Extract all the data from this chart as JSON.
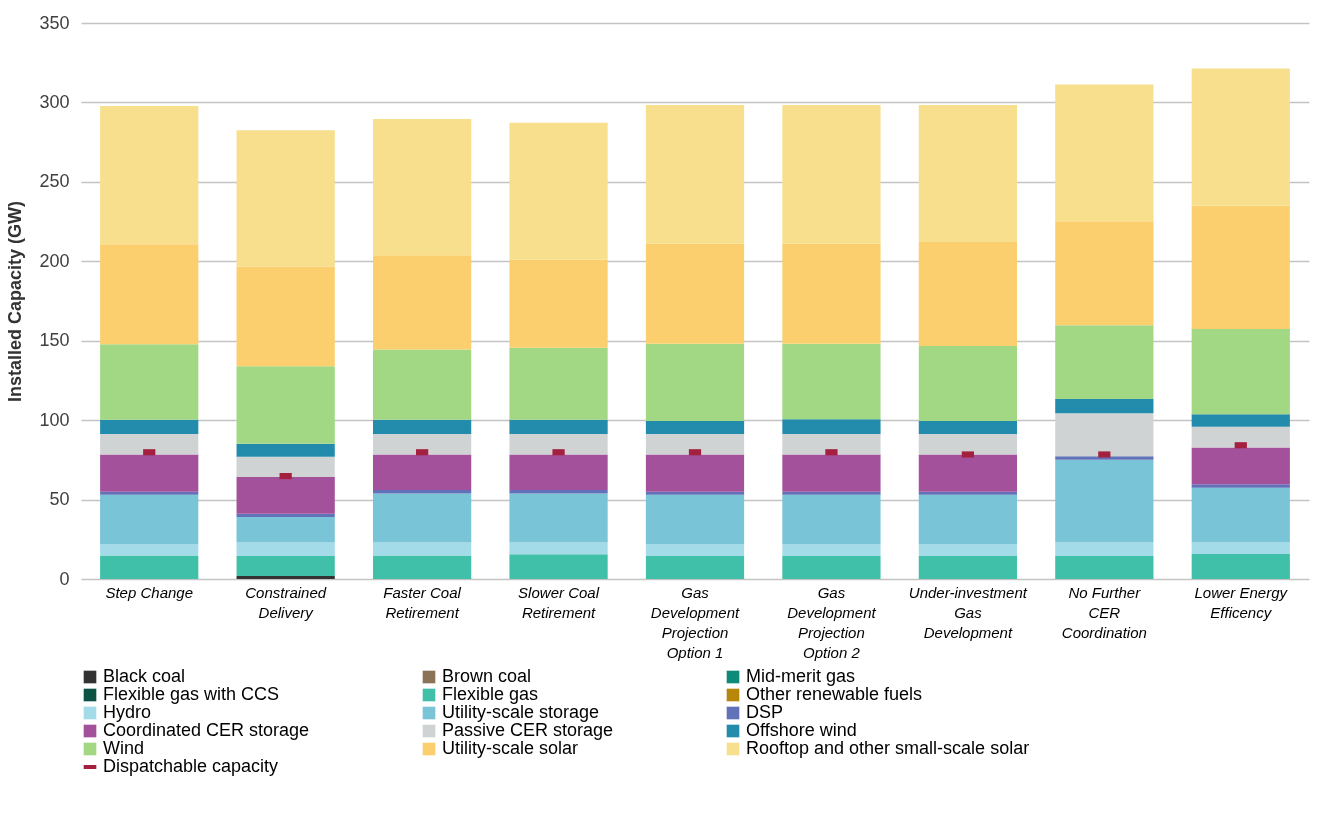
{
  "chart_data": {
    "type": "bar",
    "stacked": true,
    "ylabel": "Installed Capacity (GW)",
    "ylim": [
      0,
      350
    ],
    "yticks": [
      0,
      50,
      100,
      150,
      200,
      250,
      300,
      350
    ],
    "grid": "y",
    "legend": "bottom",
    "categories": [
      "Step Change",
      "Constrained Delivery",
      "Faster Coal Retirement",
      "Slower Coal Retirement",
      "Gas Development Projection Option 1",
      "Gas Development Projection Option 2",
      "Under-investment Gas Development",
      "No Further CER Coordination",
      "Lower Energy Efficency"
    ],
    "series": [
      {
        "name": "Black coal",
        "color": "#333333",
        "values": [
          0,
          1.9,
          0,
          0,
          0,
          0,
          0,
          0,
          0
        ]
      },
      {
        "name": "Brown coal",
        "color": "#8b7355",
        "values": [
          0,
          0,
          0,
          0,
          0,
          0,
          0,
          0,
          0
        ]
      },
      {
        "name": "Mid-merit gas",
        "color": "#0f8a78",
        "values": [
          0,
          0,
          0,
          0,
          0,
          0,
          0,
          0,
          0
        ]
      },
      {
        "name": "Flexible gas with CCS",
        "color": "#0b5345",
        "values": [
          0,
          0,
          0,
          0,
          0,
          0,
          0,
          0,
          0
        ]
      },
      {
        "name": "Flexible gas",
        "color": "#40c0a8",
        "values": [
          14.8,
          12.6,
          14.8,
          15.6,
          14.4,
          14.4,
          14.4,
          14.4,
          15.8
        ]
      },
      {
        "name": "Other renewable fuels",
        "color": "#b8860b",
        "values": [
          0,
          0,
          0,
          0,
          0,
          0,
          0,
          0,
          0
        ]
      },
      {
        "name": "Hydro",
        "color": "#a3dbe8",
        "values": [
          7.1,
          8.5,
          8.2,
          7.4,
          7.4,
          7.4,
          7.4,
          8.5,
          7.1
        ]
      },
      {
        "name": "Utility-scale storage",
        "color": "#79c4d6",
        "values": [
          31.1,
          16,
          30.8,
          30.8,
          31.3,
          31.3,
          31.3,
          52.2,
          34.5
        ]
      },
      {
        "name": "DSP",
        "color": "#6272b8",
        "values": [
          2,
          2,
          2.2,
          2.2,
          1.9,
          1.9,
          1.9,
          2.2,
          2.2
        ]
      },
      {
        "name": "Coordinated CER storage",
        "color": "#a3519a",
        "values": [
          23.4,
          23.2,
          22.4,
          22.4,
          23.4,
          23.4,
          23.4,
          0,
          23.2
        ]
      },
      {
        "name": "Passive CER storage",
        "color": "#d0d3d4",
        "values": [
          12.9,
          12.8,
          12.9,
          12.9,
          12.8,
          12.8,
          12.8,
          27,
          13
        ]
      },
      {
        "name": "Offshore wind",
        "color": "#238bac",
        "values": [
          9,
          8.2,
          9,
          9,
          8.2,
          9.3,
          8.2,
          9,
          7.9
        ]
      },
      {
        "name": "Wind",
        "color": "#a2d884",
        "values": [
          47.5,
          48.8,
          44.2,
          45.3,
          48.7,
          47.6,
          47.3,
          46.5,
          53.7
        ]
      },
      {
        "name": "Utility-scale solar",
        "color": "#fbcf6e",
        "values": [
          62.9,
          62.7,
          59.3,
          55.4,
          62.9,
          62.9,
          65.4,
          65.4,
          77.6
        ]
      },
      {
        "name": "Rooftop and other small-scale solar",
        "color": "#f7df8e",
        "values": [
          87.1,
          85.8,
          85.8,
          86.2,
          87.4,
          87.4,
          86.3,
          86.1,
          86.4
        ]
      },
      {
        "name": "Dispatchable capacity",
        "color": "#a3213f",
        "type": "scatter",
        "x": [
          "Step Change",
          "Constrained Delivery",
          "Faster Coal Retirement",
          "Slower Coal Retirement",
          "Gas Development Projection Option 1",
          "Gas Development Projection Option 2",
          "Under-investment Gas Development",
          "No Further CER Coordination",
          "Lower Energy Efficency"
        ],
        "values": [
          79.8,
          64.8,
          79.8,
          79.8,
          79.8,
          79.8,
          78.4,
          78.4,
          84.2
        ]
      }
    ]
  }
}
